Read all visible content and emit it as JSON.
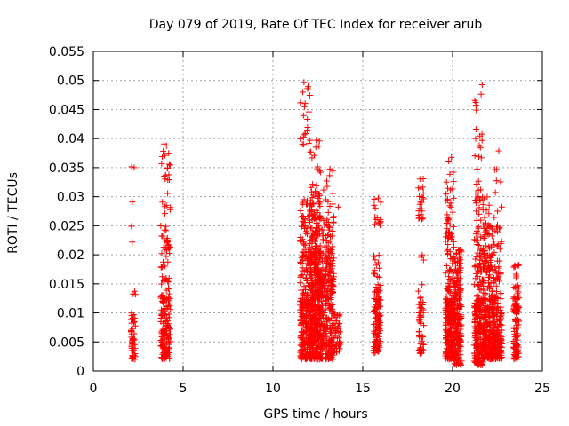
{
  "chart_data": {
    "type": "scatter",
    "title": "Day 079 of 2019, Rate Of TEC Index for receiver arub",
    "xlabel": "GPS time / hours",
    "ylabel": "ROTI / TECUs",
    "xlim": [
      0,
      25
    ],
    "ylim": [
      0,
      0.055
    ],
    "xticks": [
      "0",
      "5",
      "10",
      "15",
      "20",
      "25"
    ],
    "yticks": [
      "0",
      "0.005",
      "0.01",
      "0.015",
      "0.02",
      "0.025",
      "0.03",
      "0.035",
      "0.04",
      "0.045",
      "0.05",
      "0.055"
    ],
    "grid": true,
    "marker": "+",
    "color": "#ff0000",
    "clusters": [
      {
        "x_range": [
          2.1,
          2.35
        ],
        "n": 60,
        "bands": [
          [
            0.002,
            0.01,
            0.8
          ],
          [
            0.013,
            0.014,
            0.05
          ],
          [
            0.022,
            0.03,
            0.12
          ],
          [
            0.035,
            0.0352,
            0.03
          ]
        ]
      },
      {
        "x_range": [
          3.75,
          4.3
        ],
        "n": 200,
        "bands": [
          [
            0.002,
            0.012,
            0.55
          ],
          [
            0.012,
            0.025,
            0.35
          ],
          [
            0.027,
            0.04,
            0.1
          ]
        ]
      },
      {
        "x_range": [
          11.5,
          12.05
        ],
        "n": 280,
        "bands": [
          [
            0.002,
            0.012,
            0.6
          ],
          [
            0.012,
            0.03,
            0.34
          ],
          [
            0.038,
            0.05,
            0.06
          ]
        ]
      },
      {
        "x_range": [
          12.05,
          12.6
        ],
        "n": 420,
        "bands": [
          [
            0.002,
            0.015,
            0.55
          ],
          [
            0.015,
            0.03,
            0.38
          ],
          [
            0.03,
            0.04,
            0.07
          ]
        ]
      },
      {
        "x_range": [
          12.6,
          13.4
        ],
        "n": 360,
        "bands": [
          [
            0.002,
            0.015,
            0.6
          ],
          [
            0.015,
            0.027,
            0.35
          ],
          [
            0.027,
            0.035,
            0.05
          ]
        ]
      },
      {
        "x_range": [
          13.4,
          13.8
        ],
        "n": 40,
        "bands": [
          [
            0.003,
            0.01,
            0.85
          ],
          [
            0.028,
            0.03,
            0.15
          ]
        ]
      },
      {
        "x_range": [
          15.6,
          16.0
        ],
        "n": 140,
        "bands": [
          [
            0.003,
            0.012,
            0.7
          ],
          [
            0.012,
            0.02,
            0.2
          ],
          [
            0.025,
            0.03,
            0.1
          ]
        ]
      },
      {
        "x_range": [
          18.1,
          18.4
        ],
        "n": 80,
        "bands": [
          [
            0.003,
            0.015,
            0.7
          ],
          [
            0.019,
            0.02,
            0.05
          ],
          [
            0.026,
            0.034,
            0.25
          ]
        ]
      },
      {
        "x_range": [
          19.6,
          20.1
        ],
        "n": 280,
        "bands": [
          [
            0.002,
            0.012,
            0.62
          ],
          [
            0.012,
            0.03,
            0.33
          ],
          [
            0.03,
            0.037,
            0.05
          ]
        ]
      },
      {
        "x_range": [
          20.1,
          20.5
        ],
        "n": 200,
        "bands": [
          [
            0.001,
            0.012,
            0.6
          ],
          [
            0.012,
            0.021,
            0.4
          ]
        ]
      },
      {
        "x_range": [
          21.2,
          21.7
        ],
        "n": 260,
        "bands": [
          [
            0.001,
            0.012,
            0.6
          ],
          [
            0.012,
            0.03,
            0.3
          ],
          [
            0.03,
            0.051,
            0.1
          ]
        ]
      },
      {
        "x_range": [
          21.7,
          22.3
        ],
        "n": 340,
        "bands": [
          [
            0.002,
            0.012,
            0.65
          ],
          [
            0.012,
            0.025,
            0.3
          ],
          [
            0.025,
            0.033,
            0.05
          ]
        ]
      },
      {
        "x_range": [
          22.3,
          22.75
        ],
        "n": 180,
        "bands": [
          [
            0.002,
            0.01,
            0.7
          ],
          [
            0.01,
            0.025,
            0.25
          ],
          [
            0.025,
            0.039,
            0.05
          ]
        ]
      },
      {
        "x_range": [
          23.4,
          23.7
        ],
        "n": 120,
        "bands": [
          [
            0.002,
            0.012,
            0.75
          ],
          [
            0.012,
            0.02,
            0.25
          ]
        ]
      }
    ]
  }
}
